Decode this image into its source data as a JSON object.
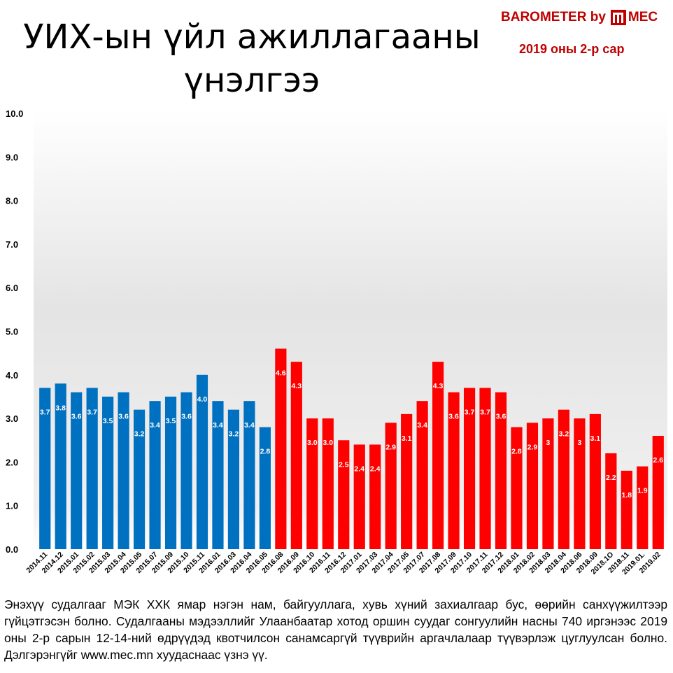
{
  "header": {
    "title": "УИХ-ын үйл ажиллагааны үнэлгээ",
    "brand": "BAROMETER by",
    "brand_suffix": "MEC",
    "period": "2019 оны 2-р сар"
  },
  "footnote": "Энэхүү судалгааг МЭК ХХК ямар нэгэн нам, байгууллага, хувь хүний захиалгаар бус, өөрийн санхүүжилтээр гүйцэтгэсэн болно. Судалгааны мэдээллийг Улаанбаатар хотод оршин суудаг сонгуулийн насны 740 иргэнээс 2019 оны 2-р сарын 12-14-ний өдрүүдэд квотчилсон санамсаргүй түүврийн аргачлалаар түүвэрлэж цуглуулсан болно. Дэлгэрэнгүйг www.mec.mn хуудаснаас үзнэ үү.",
  "colors": {
    "blue": "#0070c0",
    "red": "#ff0000",
    "brand": "#c00000"
  },
  "chart_data": {
    "type": "bar",
    "ylim": [
      0,
      10
    ],
    "yticks": [
      "0.0",
      "1.0",
      "2.0",
      "3.0",
      "4.0",
      "5.0",
      "6.0",
      "7.0",
      "8.0",
      "9.0",
      "10.0"
    ],
    "grid": false,
    "categories": [
      "2014.11",
      "2014.12",
      "2015.01",
      "2015.02",
      "2015.03",
      "2015.04",
      "2015.05",
      "2015.07",
      "2015.09",
      "2015.10",
      "2015.11",
      "2016.01",
      "2016.03",
      "2016.04",
      "2016.05",
      "2016.08",
      "2016.09",
      "2016.10",
      "2016.11",
      "2016.12",
      "2017.01",
      "2017.03",
      "2017.04",
      "2017.05",
      "2017.07",
      "2017.08",
      "2017.09",
      "2017.10",
      "2017.11",
      "2017.12",
      "2018.01",
      "2018.02",
      "2018.03",
      "2018.04",
      "2018.06",
      "2018.09",
      "2018.1O",
      "2018.11",
      "2019.01.",
      "2019.02"
    ],
    "values": [
      3.7,
      3.8,
      3.6,
      3.7,
      3.5,
      3.6,
      3.2,
      3.4,
      3.5,
      3.6,
      4.0,
      3.4,
      3.2,
      3.4,
      2.8,
      4.6,
      4.3,
      3.0,
      3.0,
      2.5,
      2.4,
      2.4,
      2.9,
      3.1,
      3.4,
      4.3,
      3.6,
      3.7,
      3.7,
      3.6,
      2.8,
      2.9,
      3,
      3.2,
      3,
      3.1,
      2.2,
      1.8,
      1.9,
      2.6
    ],
    "labels": [
      "3.7",
      "3.8",
      "3.6",
      "3.7",
      "3.5",
      "3.6",
      "3.2",
      "3.4",
      "3.5",
      "3.6",
      "4.0",
      "3.4",
      "3.2",
      "3.4",
      "2.8",
      "4.6",
      "4.3",
      "3.0",
      "3.0",
      "2.5",
      "2.4",
      "2.4",
      "2.9",
      "3.1",
      "3.4",
      "4.3",
      "3.6",
      "3.7",
      "3.7",
      "3.6",
      "2.8",
      "2.9",
      "3",
      "3.2",
      "3",
      "3.1",
      "2.2",
      "1.8",
      "1.9",
      "2.6"
    ],
    "segments": [
      {
        "from": 0,
        "to": 14,
        "color": "#0070c0"
      },
      {
        "from": 15,
        "to": 39,
        "color": "#ff0000"
      }
    ]
  }
}
